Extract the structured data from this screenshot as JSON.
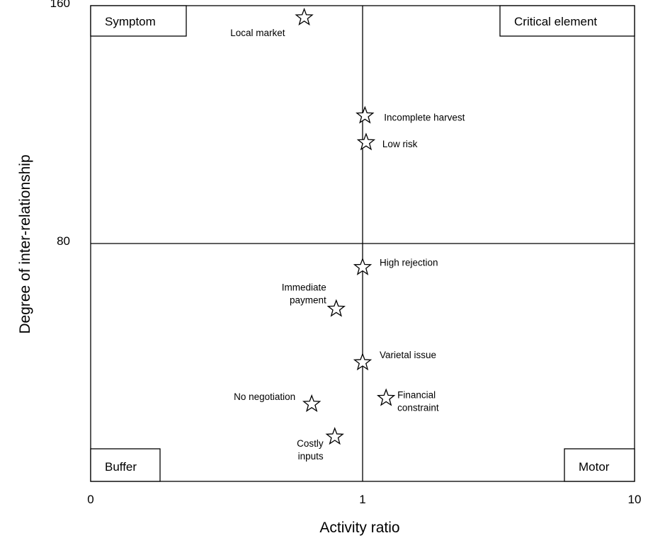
{
  "chart_data": {
    "type": "scatter",
    "title": "",
    "xlabel": "Activity ratio",
    "ylabel": "Degree of inter-relationship",
    "x_scale": "log",
    "xlim": [
      0.1,
      10
    ],
    "ylim": [
      0,
      160
    ],
    "x_ticks": [
      {
        "value": 0.1,
        "label": "0"
      },
      {
        "value": 1,
        "label": "1"
      },
      {
        "value": 10,
        "label": "10"
      }
    ],
    "y_ticks": [
      {
        "value": 80,
        "label": "80"
      },
      {
        "value": 160,
        "label": "160"
      }
    ],
    "dividers": {
      "x": 1,
      "y": 80
    },
    "quadrants": {
      "top_left": "Symptom",
      "top_right": "Critical element",
      "bottom_left": "Buffer",
      "bottom_right": "Motor"
    },
    "marker": "star",
    "points": [
      {
        "label": [
          "Local market"
        ],
        "x": 0.61,
        "y": 156
      },
      {
        "label": [
          "Incomplete harvest"
        ],
        "x": 1.02,
        "y": 123
      },
      {
        "label": [
          "Low risk"
        ],
        "x": 1.03,
        "y": 114
      },
      {
        "label": [
          "High rejection"
        ],
        "x": 1.0,
        "y": 72
      },
      {
        "label": [
          "Immediate",
          "payment"
        ],
        "x": 0.8,
        "y": 58
      },
      {
        "label": [
          "Varietal issue"
        ],
        "x": 1.0,
        "y": 40
      },
      {
        "label": [
          "No negotiation"
        ],
        "x": 0.65,
        "y": 26
      },
      {
        "label": [
          "Financial",
          "constraint"
        ],
        "x": 1.22,
        "y": 28
      },
      {
        "label": [
          "Costly",
          "inputs"
        ],
        "x": 0.79,
        "y": 15
      }
    ]
  }
}
